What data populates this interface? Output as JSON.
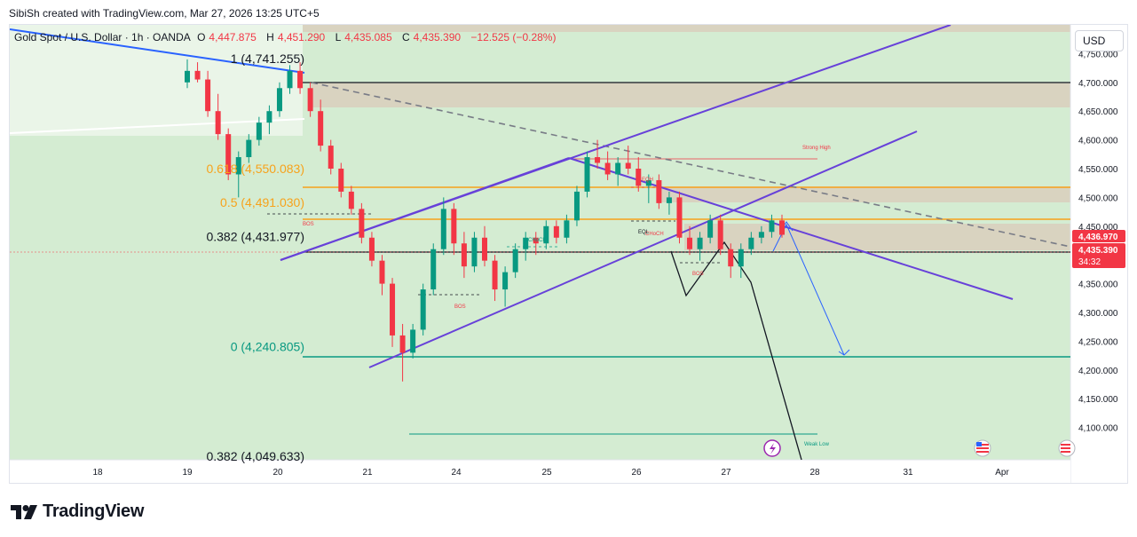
{
  "header": {
    "credit": "SibiSh created with TradingView.com, Mar 27, 2026 13:25 UTC+5"
  },
  "symbol": {
    "name": "Gold Spot / U.S. Dollar · 1h · OANDA",
    "o_label": "O",
    "o_value": "4,447.875",
    "h_label": "H",
    "h_value": "4,451.290",
    "l_label": "L",
    "l_value": "4,435.085",
    "c_label": "C",
    "c_value": "4,435.390",
    "change": "−12.525 (−0.28%)"
  },
  "currency_button": "USD",
  "price_tags": {
    "current": "4,436.970",
    "close": "4,435.390",
    "countdown": "34:32"
  },
  "fib_labels": [
    {
      "text": "1 (4,741.255)",
      "price": 4741.255,
      "color": "#131722"
    },
    {
      "text": "0.618 (4,550.083)",
      "price": 4550.083,
      "color": "#f7a21b"
    },
    {
      "text": "0.5 (4,491.030)",
      "price": 4491.03,
      "color": "#f7a21b"
    },
    {
      "text": "0.382 (4,431.977)",
      "price": 4431.977,
      "color": "#131722"
    },
    {
      "text": "0 (4,240.805)",
      "price": 4240.805,
      "color": "#089981"
    },
    {
      "text": "0.382 (4,049.633)",
      "price": 4049.633,
      "color": "#131722"
    }
  ],
  "annotations": {
    "strong_high": "Strong High",
    "weak_low": "Weak Low",
    "bos": "BOS",
    "choch": "CHoCH",
    "eqh": "EQH",
    "eql": "EQL"
  },
  "footer": {
    "brand": "TradingView"
  },
  "colors": {
    "bg_green": "#d4ecd2",
    "bull": "#089981",
    "bear": "#f23645",
    "channel": "#6741d9",
    "fib_orange": "#f7a21b",
    "trend_blue": "#2962ff"
  },
  "chart_data": {
    "type": "candlestick",
    "title": "Gold Spot / U.S. Dollar · 1h · OANDA",
    "y_axis": {
      "ticks": [
        4100,
        4150,
        4200,
        4250,
        4300,
        4350,
        4400,
        4450,
        4500,
        4550,
        4600,
        4650,
        4700,
        4750
      ],
      "tick_labels": [
        "4,100.000",
        "4,150.000",
        "4,200.000",
        "4,250.000",
        "4,300.000",
        "4,350.000",
        "4,400.000",
        "4,450.000",
        "4,500.000",
        "4,550.000",
        "4,600.000",
        "4,650.000",
        "4,700.000",
        "4,750.000"
      ],
      "range": [
        4050,
        4800
      ]
    },
    "x_axis": {
      "tick_labels": [
        "18",
        "19",
        "20",
        "21",
        "24",
        "25",
        "26",
        "27",
        "28",
        "31",
        "Apr"
      ]
    },
    "candles": [
      [
        4700,
        4740,
        4690,
        4720
      ],
      [
        4720,
        4735,
        4700,
        4705
      ],
      [
        4705,
        4720,
        4640,
        4650
      ],
      [
        4650,
        4680,
        4600,
        4610
      ],
      [
        4610,
        4620,
        4530,
        4540
      ],
      [
        4540,
        4580,
        4500,
        4570
      ],
      [
        4570,
        4610,
        4560,
        4600
      ],
      [
        4600,
        4640,
        4590,
        4630
      ],
      [
        4630,
        4660,
        4610,
        4650
      ],
      [
        4650,
        4700,
        4640,
        4690
      ],
      [
        4690,
        4730,
        4680,
        4720
      ],
      [
        4720,
        4735,
        4680,
        4690
      ],
      [
        4690,
        4700,
        4640,
        4650
      ],
      [
        4650,
        4670,
        4580,
        4590
      ],
      [
        4590,
        4600,
        4540,
        4550
      ],
      [
        4550,
        4560,
        4500,
        4510
      ],
      [
        4510,
        4520,
        4470,
        4480
      ],
      [
        4480,
        4490,
        4420,
        4430
      ],
      [
        4430,
        4440,
        4380,
        4390
      ],
      [
        4390,
        4400,
        4330,
        4350
      ],
      [
        4350,
        4360,
        4240,
        4260
      ],
      [
        4260,
        4280,
        4180,
        4230
      ],
      [
        4230,
        4280,
        4220,
        4270
      ],
      [
        4270,
        4350,
        4260,
        4340
      ],
      [
        4340,
        4420,
        4330,
        4410
      ],
      [
        4410,
        4500,
        4400,
        4480
      ],
      [
        4480,
        4490,
        4400,
        4420
      ],
      [
        4420,
        4440,
        4360,
        4380
      ],
      [
        4380,
        4440,
        4370,
        4430
      ],
      [
        4430,
        4450,
        4380,
        4390
      ],
      [
        4390,
        4400,
        4320,
        4340
      ],
      [
        4340,
        4380,
        4310,
        4370
      ],
      [
        4370,
        4420,
        4360,
        4410
      ],
      [
        4410,
        4440,
        4390,
        4430
      ],
      [
        4430,
        4440,
        4400,
        4420
      ],
      [
        4420,
        4460,
        4410,
        4450
      ],
      [
        4450,
        4460,
        4420,
        4430
      ],
      [
        4430,
        4470,
        4420,
        4460
      ],
      [
        4460,
        4520,
        4450,
        4510
      ],
      [
        4510,
        4580,
        4500,
        4570
      ],
      [
        4570,
        4600,
        4550,
        4560
      ],
      [
        4560,
        4580,
        4530,
        4540
      ],
      [
        4540,
        4570,
        4520,
        4560
      ],
      [
        4560,
        4590,
        4540,
        4550
      ],
      [
        4550,
        4570,
        4510,
        4520
      ],
      [
        4520,
        4540,
        4490,
        4530
      ],
      [
        4530,
        4540,
        4480,
        4490
      ],
      [
        4490,
        4510,
        4470,
        4500
      ],
      [
        4500,
        4510,
        4420,
        4430
      ],
      [
        4430,
        4450,
        4400,
        4410
      ],
      [
        4410,
        4440,
        4390,
        4430
      ],
      [
        4430,
        4470,
        4420,
        4460
      ],
      [
        4460,
        4470,
        4400,
        4410
      ],
      [
        4410,
        4420,
        4360,
        4380
      ],
      [
        4380,
        4420,
        4360,
        4410
      ],
      [
        4410,
        4440,
        4400,
        4430
      ],
      [
        4430,
        4450,
        4420,
        4440
      ],
      [
        4440,
        4470,
        4430,
        4460
      ],
      [
        4460,
        4470,
        4430,
        4435
      ]
    ]
  }
}
